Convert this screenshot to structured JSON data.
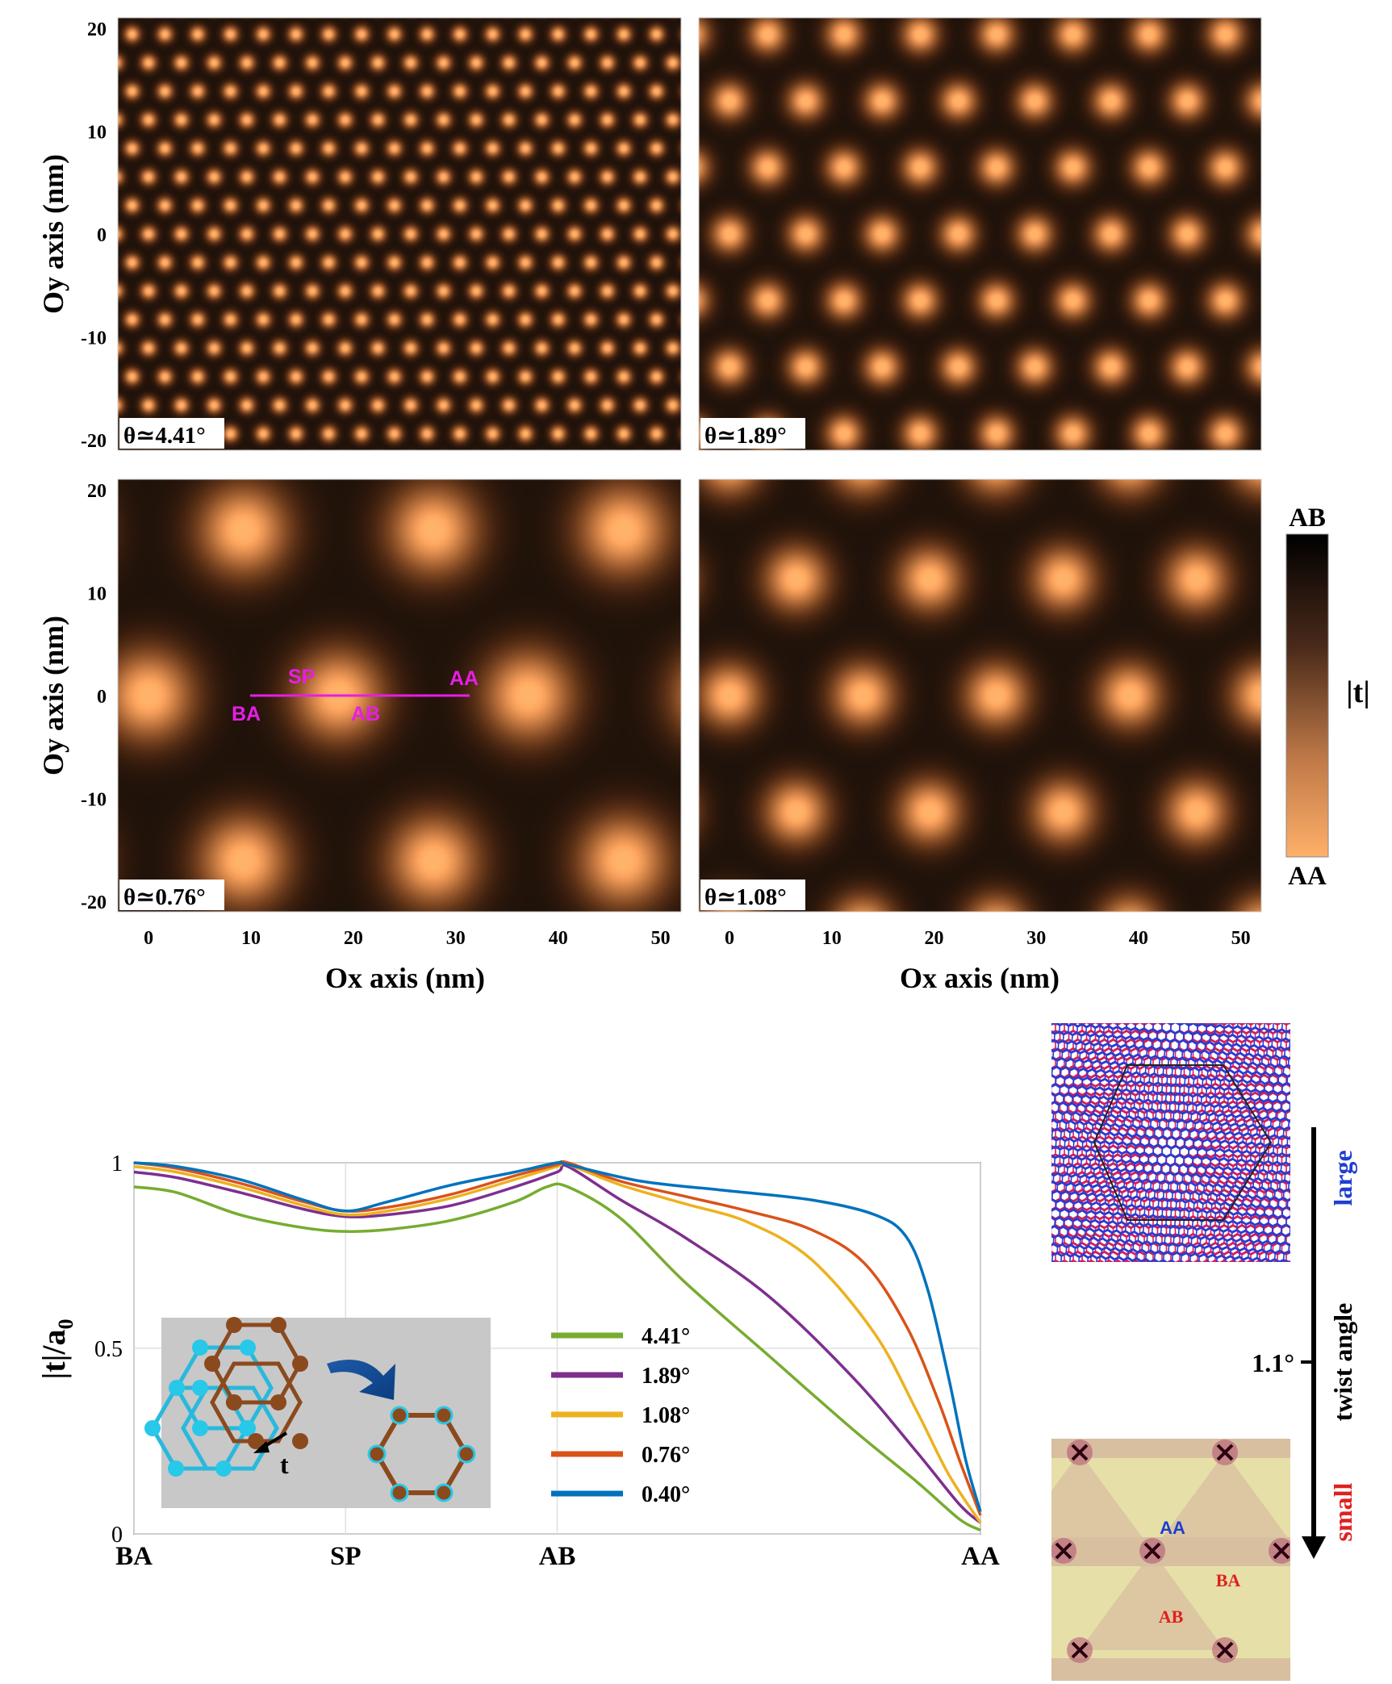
{
  "chart_data": [
    {
      "type": "heatmap",
      "panel": "top-left",
      "angle_label": "θ≃4.41°",
      "moire_period_nm": 3.2,
      "ylabel": "Oy axis (nm)",
      "xlabel": "",
      "xlim": [
        -3,
        52
      ],
      "ylim": [
        -21,
        21
      ],
      "yticks": [
        "-20",
        "-10",
        "0",
        "10",
        "20"
      ],
      "yticks_values": [
        -20,
        -10,
        0,
        10,
        20
      ]
    },
    {
      "type": "heatmap",
      "panel": "top-right",
      "angle_label": "θ≃1.89°",
      "moire_period_nm": 7.46,
      "xlabel": "",
      "ylabel": "",
      "xlim": [
        -3,
        52
      ],
      "ylim": [
        -21,
        21
      ]
    },
    {
      "type": "heatmap",
      "panel": "bottom-left",
      "angle_label": "θ≃0.76°",
      "moire_period_nm": 18.55,
      "ylabel": "Oy axis (nm)",
      "xlabel": "Ox axis (nm)",
      "xlim": [
        -3,
        52
      ],
      "ylim": [
        -21,
        21
      ],
      "xticks": [
        "0",
        "10",
        "20",
        "30",
        "40",
        "50"
      ],
      "xticks_values": [
        0,
        10,
        20,
        30,
        40,
        50
      ],
      "yticks": [
        "-20",
        "-10",
        "0",
        "10",
        "20"
      ],
      "yticks_values": [
        -20,
        -10,
        0,
        10,
        20
      ],
      "path_annotation": {
        "labels": [
          "SP",
          "AA",
          "BA",
          "AB"
        ],
        "x_start": 10.7,
        "x_end": 32,
        "y": 0
      }
    },
    {
      "type": "heatmap",
      "panel": "bottom-right",
      "angle_label": "θ≃1.08°",
      "moire_period_nm": 13.05,
      "xlabel": "Ox axis (nm)",
      "ylabel": "",
      "xlim": [
        -3,
        52
      ],
      "ylim": [
        -21,
        21
      ],
      "xticks": [
        "0",
        "10",
        "20",
        "30",
        "40",
        "50"
      ],
      "xticks_values": [
        0,
        10,
        20,
        30,
        40,
        50
      ]
    },
    {
      "type": "line",
      "ylabel": "|t|/a",
      "ylabel_sub": "0",
      "xlabel": "",
      "categories": [
        "BA",
        "SP",
        "AB",
        "AA"
      ],
      "x_category_positions": [
        0,
        1,
        2,
        4
      ],
      "xlim": [
        0,
        4
      ],
      "ylim": [
        0,
        1
      ],
      "yticks": [
        "0",
        "0.5",
        "1"
      ],
      "yticks_values": [
        0,
        0.5,
        1
      ],
      "grid": true,
      "legend_position": "center",
      "series": [
        {
          "name": "4.41°",
          "color": "#77ac30",
          "x": [
            0,
            0.2,
            0.5,
            0.8,
            1.0,
            1.2,
            1.5,
            1.8,
            1.95,
            2.05,
            2.3,
            2.6,
            3.0,
            3.4,
            3.7,
            3.9,
            4.0
          ],
          "y": [
            0.935,
            0.92,
            0.86,
            0.825,
            0.815,
            0.82,
            0.845,
            0.895,
            0.935,
            0.935,
            0.85,
            0.68,
            0.48,
            0.28,
            0.14,
            0.04,
            0.01
          ]
        },
        {
          "name": "1.89°",
          "color": "#7e2f8e",
          "x": [
            0,
            0.2,
            0.5,
            0.8,
            1.0,
            1.2,
            1.5,
            1.8,
            2.0,
            2.05,
            2.3,
            2.6,
            3.0,
            3.4,
            3.7,
            3.9,
            4.0
          ],
          "y": [
            0.975,
            0.96,
            0.92,
            0.875,
            0.855,
            0.86,
            0.885,
            0.935,
            0.975,
            0.99,
            0.9,
            0.8,
            0.64,
            0.42,
            0.22,
            0.08,
            0.03
          ]
        },
        {
          "name": "1.08°",
          "color": "#edb120",
          "x": [
            0,
            0.2,
            0.5,
            0.8,
            1.0,
            1.2,
            1.5,
            1.8,
            2.0,
            2.05,
            2.3,
            2.6,
            2.9,
            3.2,
            3.5,
            3.7,
            3.85,
            4.0
          ],
          "y": [
            0.99,
            0.975,
            0.935,
            0.885,
            0.86,
            0.87,
            0.905,
            0.955,
            0.99,
            0.995,
            0.94,
            0.89,
            0.84,
            0.74,
            0.54,
            0.33,
            0.16,
            0.03
          ]
        },
        {
          "name": "0.76°",
          "color": "#d95319",
          "x": [
            0,
            0.2,
            0.5,
            0.8,
            1.0,
            1.2,
            1.5,
            1.8,
            2.0,
            2.05,
            2.3,
            2.6,
            2.9,
            3.2,
            3.45,
            3.65,
            3.8,
            3.9,
            4.0
          ],
          "y": [
            1.0,
            0.985,
            0.945,
            0.895,
            0.87,
            0.88,
            0.915,
            0.965,
            0.995,
            1.0,
            0.95,
            0.91,
            0.87,
            0.82,
            0.73,
            0.56,
            0.36,
            0.2,
            0.05
          ]
        },
        {
          "name": "0.40°",
          "color": "#0072bd",
          "x": [
            0,
            0.2,
            0.5,
            0.8,
            1.0,
            1.2,
            1.5,
            1.8,
            2.0,
            2.05,
            2.4,
            2.8,
            3.2,
            3.5,
            3.65,
            3.75,
            3.85,
            3.93,
            4.0
          ],
          "y": [
            1.0,
            0.99,
            0.955,
            0.9,
            0.87,
            0.895,
            0.94,
            0.975,
            1.0,
            0.995,
            0.95,
            0.925,
            0.9,
            0.86,
            0.8,
            0.66,
            0.42,
            0.2,
            0.06
          ]
        }
      ]
    }
  ],
  "colorbar": {
    "label": "|t|",
    "top_label": "AB",
    "bottom_label": "AA"
  },
  "inset": {
    "t_label": "t"
  },
  "schematic": {
    "top_label": "large",
    "axis_label": "twist angle",
    "tick_label": "1.1°",
    "bottom_label": "small",
    "stacking_labels": [
      "AA",
      "BA",
      "AB"
    ]
  },
  "colors": {
    "heatmap_dark": "#000000",
    "heatmap_bright": "#ffb069",
    "path_magenta": "#e61ee6",
    "large_blue": "#1f3fcf",
    "small_red": "#e02020"
  }
}
